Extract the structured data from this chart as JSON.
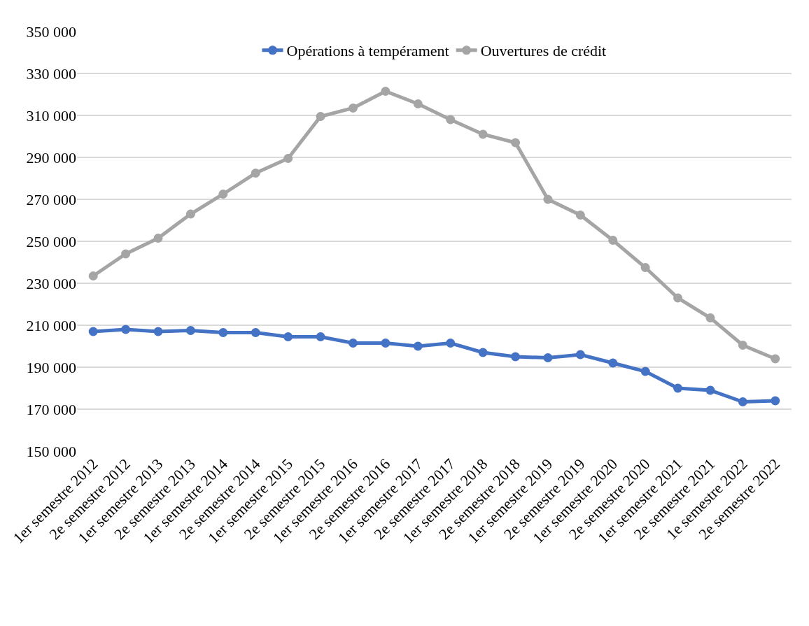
{
  "chart_data": {
    "type": "line",
    "categories": [
      "1er semestre 2012",
      "2e semestre 2012",
      "1er semestre 2013",
      "2e semestre 2013",
      "1er semestre 2014",
      "2e semestre 2014",
      "1er semestre 2015",
      "2e semestre 2015",
      "1er semestre 2016",
      "2e semestre 2016",
      "1er semestre 2017",
      "2e semestre 2017",
      "1er semestre 2018",
      "2e semestre 2018",
      "1er semestre 2019",
      "2e semestre 2019",
      "1er semestre 2020",
      "2e semestre 2020",
      "1er semestre 2021",
      "2e semestre 2021",
      "1e semestre 2022",
      "2e semestre 2022"
    ],
    "series": [
      {
        "name": "Opérations à tempérament",
        "color": "#4472c4",
        "values": [
          207000,
          208000,
          207000,
          207500,
          206500,
          206500,
          204500,
          204500,
          201500,
          201500,
          200000,
          201500,
          197000,
          195000,
          194500,
          196000,
          192000,
          188000,
          180000,
          179000,
          173500,
          174000
        ]
      },
      {
        "name": "Ouvertures de crédit",
        "color": "#a5a5a5",
        "values": [
          233500,
          244000,
          251500,
          263000,
          272500,
          282500,
          289500,
          309500,
          313500,
          321500,
          315500,
          308000,
          301000,
          297000,
          270000,
          262500,
          250500,
          237500,
          223000,
          213500,
          200500,
          194000
        ]
      }
    ],
    "ylim": [
      150000,
      350000
    ],
    "yticks": [
      {
        "value": 150000,
        "label": "150 000"
      },
      {
        "value": 170000,
        "label": "170 000"
      },
      {
        "value": 190000,
        "label": "190 000"
      },
      {
        "value": 210000,
        "label": "210 000"
      },
      {
        "value": 230000,
        "label": "230 000"
      },
      {
        "value": 250000,
        "label": "250 000"
      },
      {
        "value": 270000,
        "label": "270 000"
      },
      {
        "value": 290000,
        "label": "290 000"
      },
      {
        "value": 310000,
        "label": "310 000"
      },
      {
        "value": 330000,
        "label": "330 000"
      },
      {
        "value": 350000,
        "label": "350 000"
      }
    ],
    "grid": "y",
    "legend": "top",
    "marker": "circle",
    "line_style": "solid"
  }
}
